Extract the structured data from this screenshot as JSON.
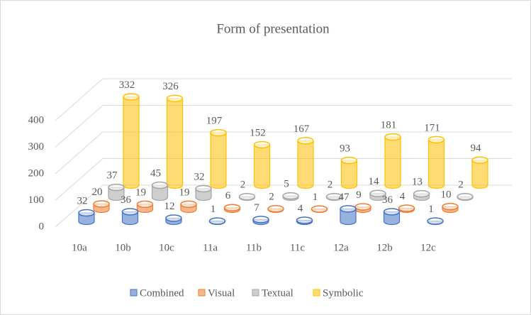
{
  "chart_data": {
    "type": "bar3d",
    "title": "Form of presentation",
    "categories": [
      "10a",
      "10b",
      "10c",
      "11a",
      "11b",
      "11c",
      "12a",
      "12b",
      "12c"
    ],
    "series": [
      {
        "name": "Combined",
        "color": "#4472c4",
        "values": [
          32,
          36,
          12,
          1,
          7,
          4,
          47,
          36,
          1
        ]
      },
      {
        "name": "Visual",
        "color": "#ed7d31",
        "values": [
          20,
          19,
          19,
          6,
          2,
          1,
          9,
          4,
          10
        ]
      },
      {
        "name": "Textual",
        "color": "#a5a5a5",
        "values": [
          37,
          45,
          32,
          2,
          5,
          2,
          14,
          13,
          2
        ]
      },
      {
        "name": "Symbolic",
        "color": "#ffc000",
        "values": [
          332,
          326,
          197,
          152,
          167,
          93,
          181,
          171,
          94
        ]
      }
    ],
    "ylim": [
      0,
      400
    ],
    "yticks": [
      0,
      100,
      200,
      300,
      400
    ],
    "grid": true,
    "legend": "bottom"
  }
}
